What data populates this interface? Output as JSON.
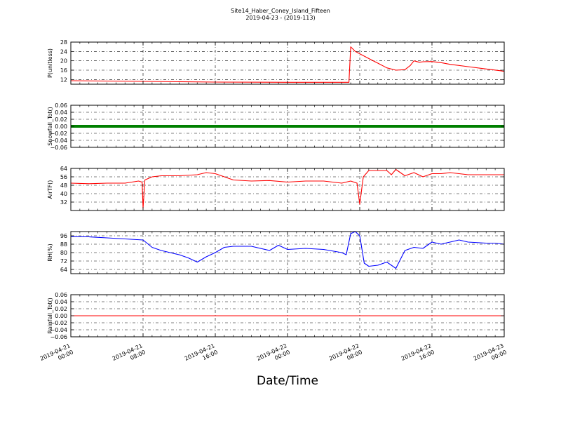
{
  "title": "Site14_Haber_Coney_Island_Fifteen",
  "subtitle": "2019-04-23 - (2019-113)",
  "xlabel": "Date/Time",
  "x_ticks": [
    "2019-04-21 00:00",
    "2019-04-21 08:00",
    "2019-04-21 16:00",
    "2019-04-22 00:00",
    "2019-04-22 08:00",
    "2019-04-22 16:00",
    "2019-04-23 00:00"
  ],
  "chart_data": [
    {
      "type": "line",
      "ylabel": "P(unitless)",
      "ylim": [
        10,
        28
      ],
      "yticks": [
        "12",
        "16",
        "20",
        "24",
        "28"
      ],
      "xlim_hours": [
        0,
        48
      ],
      "color": "#ff0000",
      "x_hours": [
        0,
        8,
        16,
        24,
        30.8,
        31.0,
        31.5,
        32.5,
        33.5,
        34.0,
        35.0,
        36.0,
        37.0,
        37.6,
        38.0,
        38.6,
        39.0,
        40.0,
        41.0,
        42.0,
        44.0,
        46.0,
        47.5,
        48.0
      ],
      "y": [
        11.5,
        11.2,
        10.9,
        10.8,
        10.8,
        26.0,
        24.0,
        22.0,
        20.0,
        19.0,
        17.0,
        16.0,
        16.2,
        18.0,
        20.0,
        19.4,
        19.6,
        19.7,
        19.2,
        18.5,
        17.5,
        16.5,
        15.8,
        15.5
      ]
    },
    {
      "type": "line",
      "ylabel": "Snowfall_Tot()",
      "ylim": [
        -0.06,
        0.06
      ],
      "yticks": [
        "0.06",
        "0.04",
        "0.02",
        "0.00",
        "−0.02",
        "−0.04",
        "−0.06"
      ],
      "xlim_hours": [
        0,
        48
      ],
      "color": "#008000",
      "x_hours": [
        0,
        48
      ],
      "y": [
        0,
        0
      ]
    },
    {
      "type": "line",
      "ylabel": "AirTF()",
      "ylim": [
        24,
        64
      ],
      "yticks": [
        "32",
        "40",
        "48",
        "56",
        "64"
      ],
      "xlim_hours": [
        0,
        48
      ],
      "color": "#ff0000",
      "x_hours": [
        0,
        2,
        4,
        6,
        7.5,
        7.9,
        8.0,
        8.2,
        9.0,
        10.0,
        12.0,
        14.0,
        15.0,
        16.0,
        17.0,
        18.0,
        20.0,
        22.0,
        24.0,
        26.0,
        28.0,
        30.0,
        31.0,
        31.7,
        32.0,
        32.4,
        33.0,
        35.0,
        35.5,
        36.0,
        37.0,
        38.0,
        39.0,
        40.0,
        41.0,
        42.0,
        44.0,
        46.0,
        48.0
      ],
      "y": [
        50,
        49.5,
        50,
        50,
        52,
        51,
        26,
        53,
        56,
        57,
        57,
        58,
        60,
        59,
        56,
        53,
        52,
        52.5,
        51,
        52,
        52,
        50,
        52,
        50,
        30,
        56,
        62,
        62,
        58,
        63,
        57,
        60,
        56,
        59,
        59,
        60,
        58,
        58,
        58
      ]
    },
    {
      "type": "line",
      "ylabel": "RH(%)",
      "ylim": [
        60,
        100
      ],
      "yticks": [
        "64",
        "72",
        "80",
        "88",
        "96"
      ],
      "xlim_hours": [
        0,
        48
      ],
      "color": "#0000ff",
      "x_hours": [
        0,
        2,
        4,
        6,
        8,
        9,
        10,
        11,
        12,
        13,
        14,
        15,
        16,
        17,
        18,
        20,
        22,
        23,
        24,
        26,
        28,
        30,
        30.5,
        31.0,
        31.5,
        32.0,
        32.5,
        33.0,
        34.0,
        35.0,
        36.0,
        37.0,
        38.0,
        39.0,
        40.0,
        41.0,
        42.0,
        43.0,
        44.0,
        46.0,
        47.0,
        48.0
      ],
      "y": [
        95,
        95,
        94,
        93,
        92,
        85,
        82,
        80,
        78,
        75,
        71,
        76,
        80,
        85,
        86,
        86,
        82,
        87,
        83,
        84,
        83,
        80,
        78,
        98,
        100,
        96,
        70,
        67,
        68,
        71,
        65,
        82,
        85,
        84,
        90,
        88,
        90,
        92,
        90,
        89,
        89,
        88
      ]
    },
    {
      "type": "line",
      "ylabel": "Rainfall_Tot()",
      "ylim": [
        -0.06,
        0.06
      ],
      "yticks": [
        "0.06",
        "0.04",
        "0.02",
        "0.00",
        "−0.02",
        "−0.04",
        "−0.06"
      ],
      "xlim_hours": [
        0,
        48
      ],
      "color": "#ff0000",
      "x_hours": [
        0,
        48
      ],
      "y": [
        0,
        0
      ]
    }
  ]
}
